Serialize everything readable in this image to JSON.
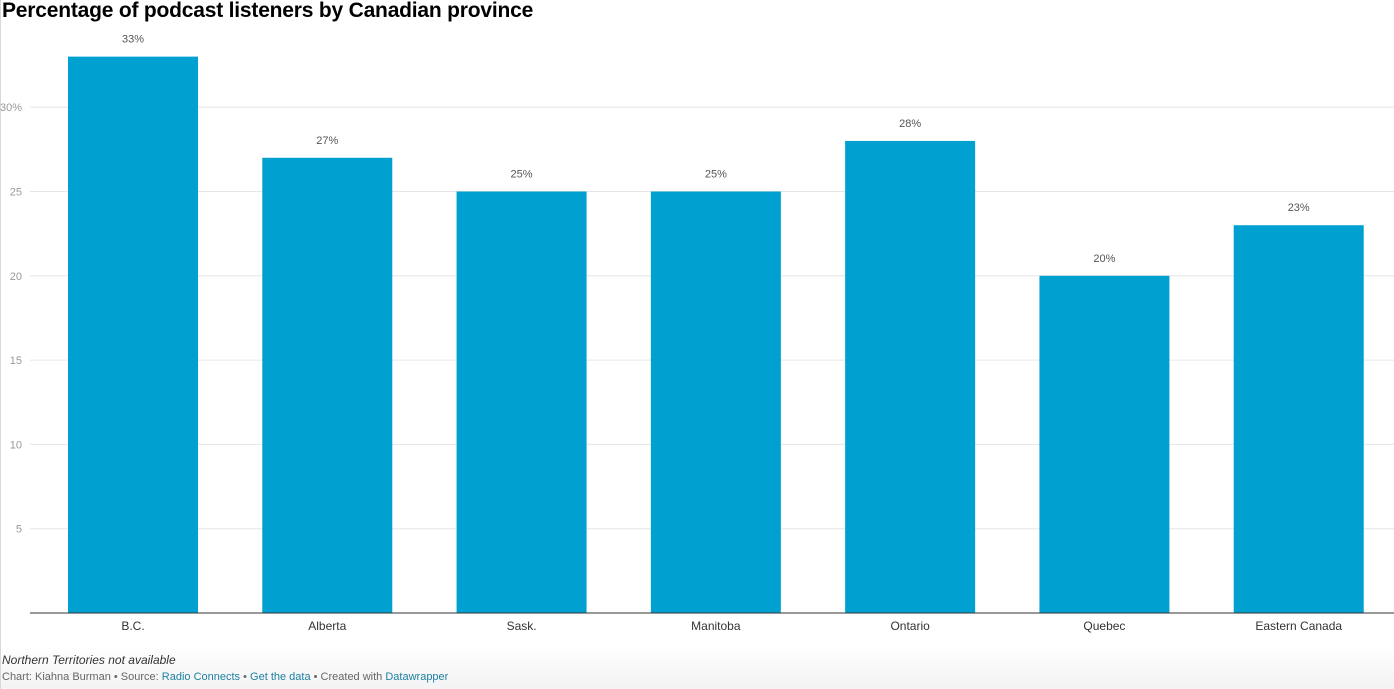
{
  "title": "Percentage of podcast listeners by Canadian province",
  "note": "Northern Territories not available",
  "footer": {
    "chart_prefix": "Chart: Kiahna Burman",
    "sep1": " • Source: ",
    "source_link": "Radio Connects",
    "sep2": " • ",
    "data_link": "Get the data",
    "sep3": " • Created with ",
    "tool_link": "Datawrapper"
  },
  "colors": {
    "bar": "#00a1d0",
    "grid": "#e6e6e6",
    "axis": "#333333"
  },
  "chart_data": {
    "type": "bar",
    "title": "Percentage of podcast listeners by Canadian province",
    "categories": [
      "B.C.",
      "Alberta",
      "Sask.",
      "Manitoba",
      "Ontario",
      "Quebec",
      "Eastern Canada"
    ],
    "values": [
      33,
      27,
      25,
      25,
      28,
      20,
      23
    ],
    "data_labels": [
      "33%",
      "27%",
      "25%",
      "25%",
      "28%",
      "20%",
      "23%"
    ],
    "yticks": [
      5,
      10,
      15,
      20,
      25,
      30
    ],
    "ytick_labels": [
      "5",
      "10",
      "15",
      "20",
      "25",
      "30%"
    ],
    "ylim": [
      0,
      30
    ],
    "grid": true,
    "xlabel": "",
    "ylabel": ""
  }
}
